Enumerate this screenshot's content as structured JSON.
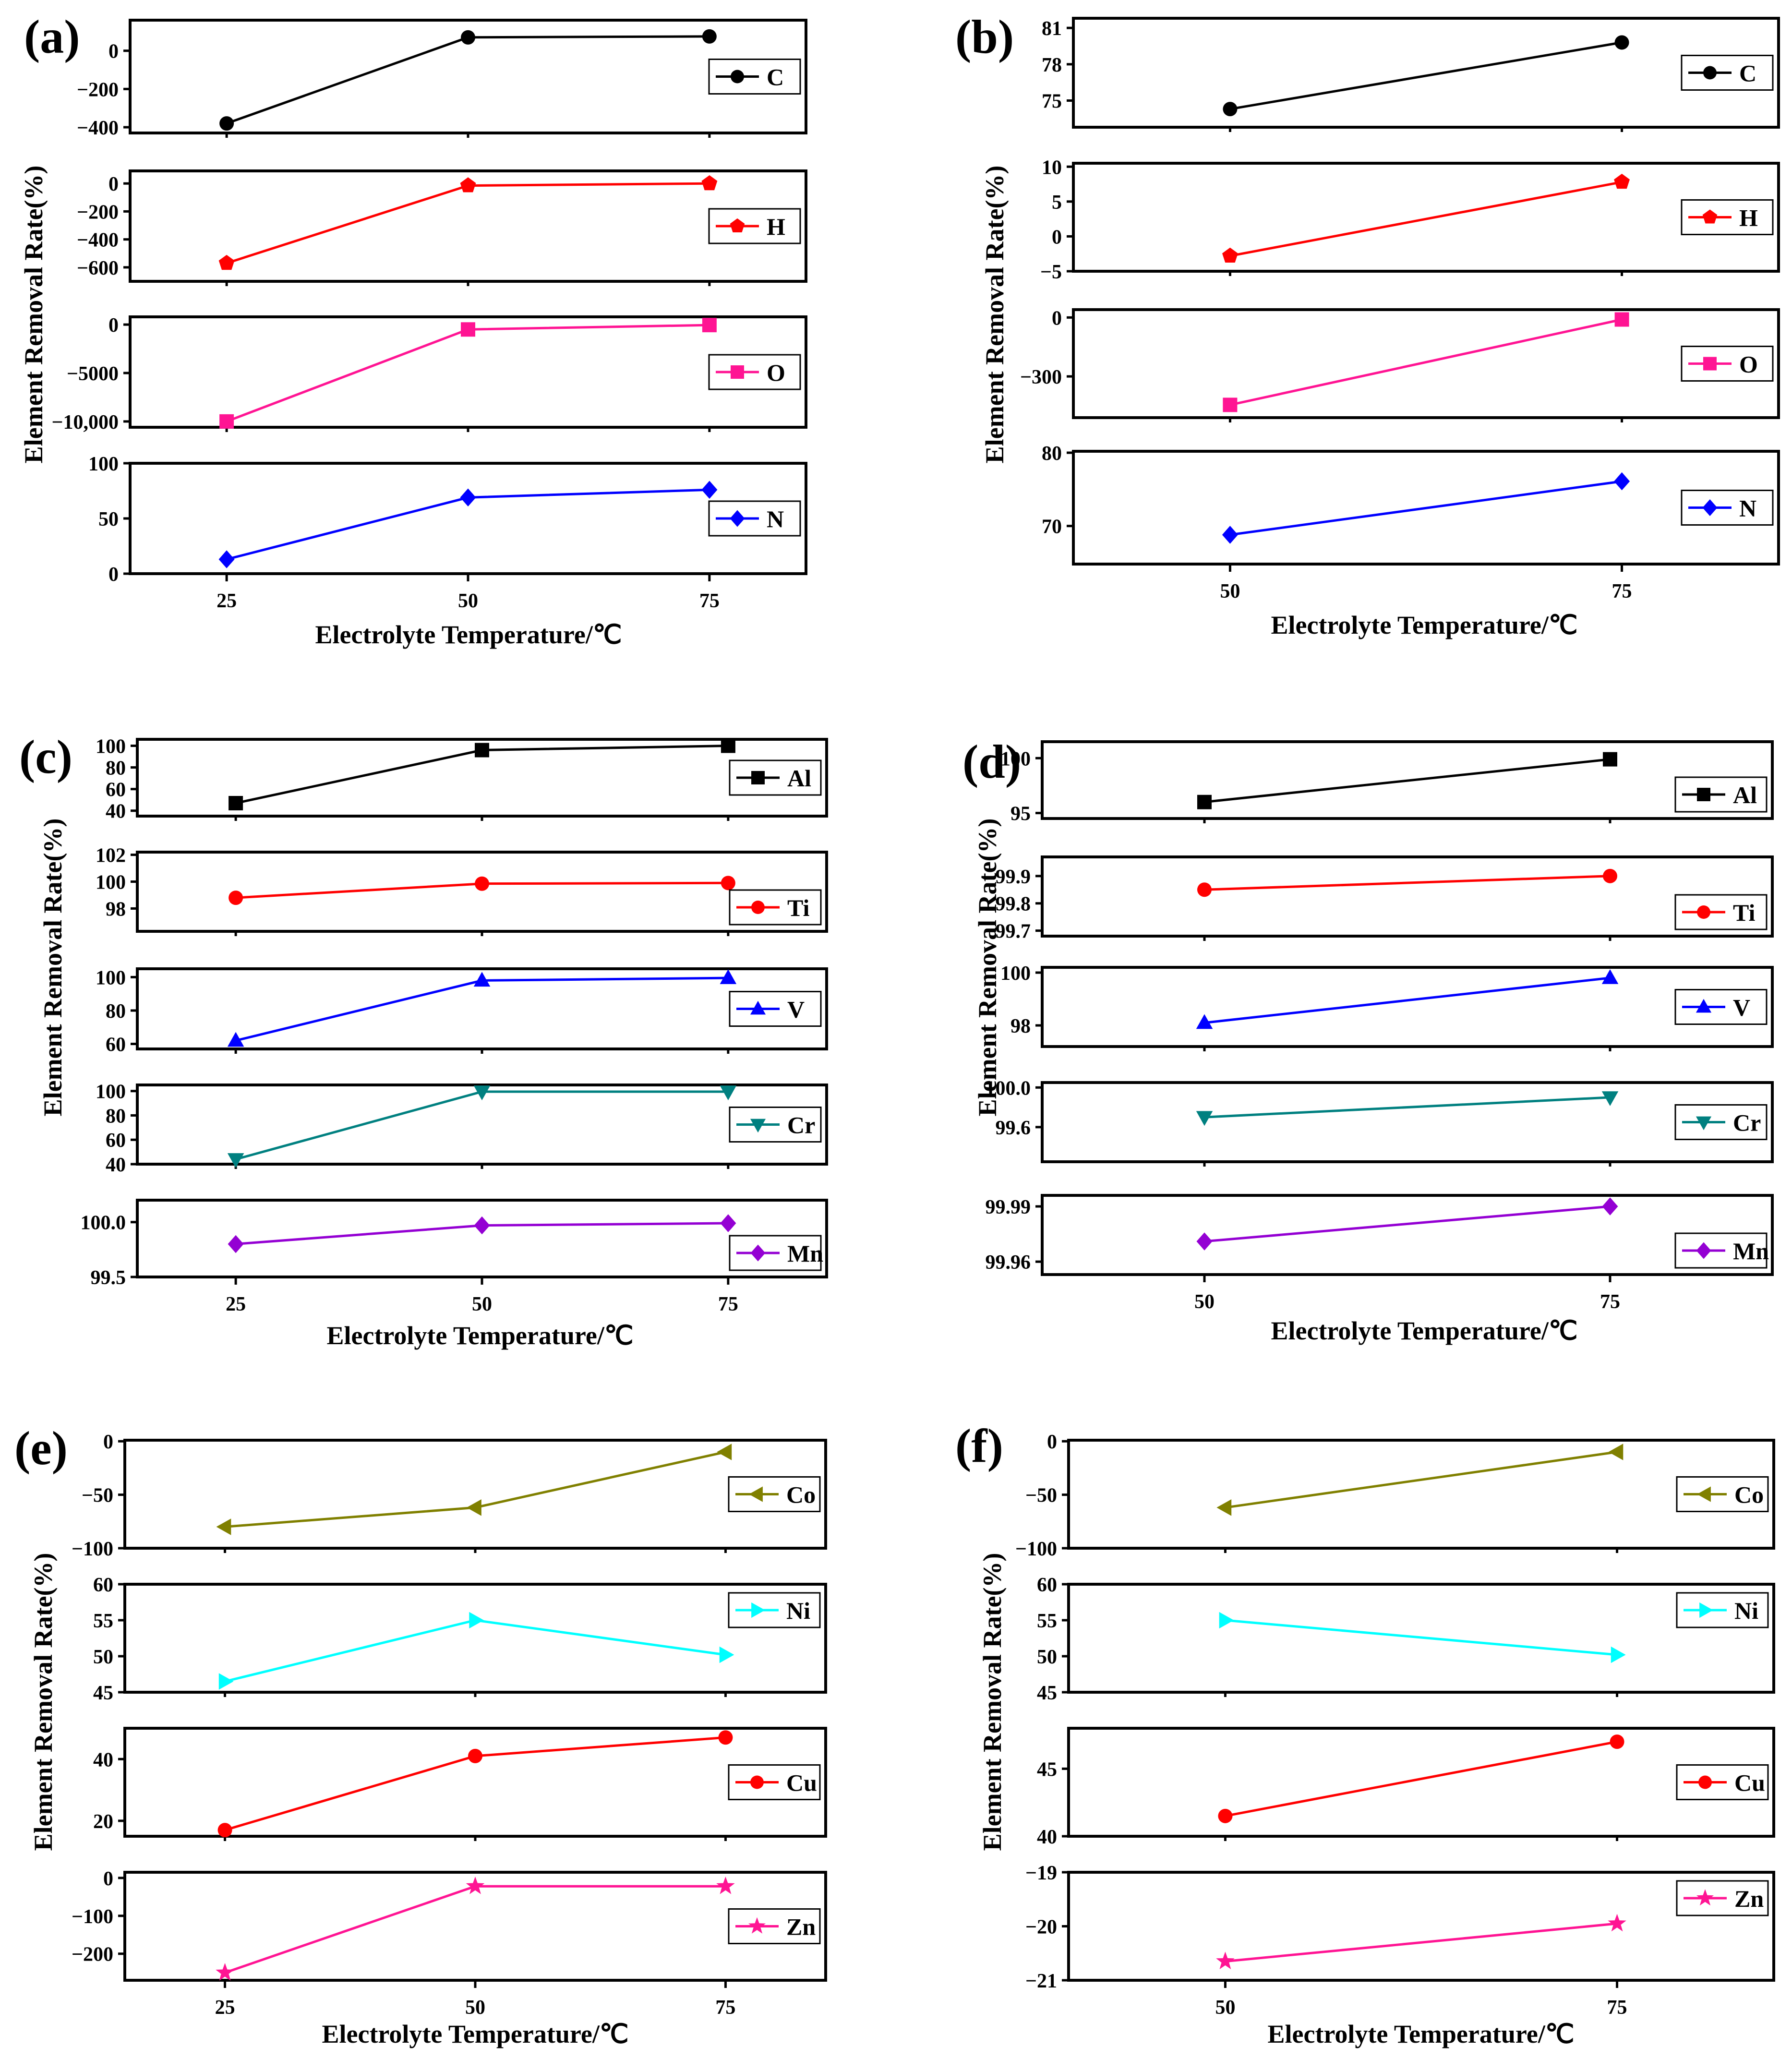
{
  "figure": {
    "x_label": "Electrolyte Temperature/℃",
    "y_label": "Element Removal Rate(%)"
  },
  "chart_data": [
    {
      "panel": "(a)",
      "type": "line",
      "x": [
        25,
        50,
        75
      ],
      "x_ticks": [
        "25",
        "50",
        "75"
      ],
      "xlabel": "Electrolyte Temperature/℃",
      "ylabel": "Element Removal Rate(%)",
      "subplots": [
        {
          "series": "C",
          "color": "#000000",
          "marker": "circle",
          "values": [
            -380,
            70,
            75
          ],
          "ylim": [
            -430,
            160
          ],
          "yticks": [
            {
              "v": 0,
              "t": "0"
            },
            {
              "v": -200,
              "t": "−200"
            },
            {
              "v": -400,
              "t": "−400"
            }
          ],
          "legend": "right-middle"
        },
        {
          "series": "H",
          "color": "#ff0000",
          "marker": "pentagon",
          "values": [
            -570,
            -15,
            0
          ],
          "ylim": [
            -700,
            90
          ],
          "yticks": [
            {
              "v": 0,
              "t": "0"
            },
            {
              "v": -200,
              "t": "−200"
            },
            {
              "v": -400,
              "t": "−400"
            },
            {
              "v": -600,
              "t": "−600"
            }
          ],
          "legend": "right-middle"
        },
        {
          "series": "O",
          "color": "#ff1493",
          "marker": "square",
          "values": [
            -10000,
            -500,
            -50
          ],
          "ylim": [
            -10600,
            800
          ],
          "yticks": [
            {
              "v": 0,
              "t": "0"
            },
            {
              "v": -5000,
              "t": "−5000"
            },
            {
              "v": -10000,
              "t": "−10,000"
            }
          ],
          "legend": "right-middle"
        },
        {
          "series": "N",
          "color": "#0000ff",
          "marker": "diamond",
          "values": [
            13,
            69,
            76
          ],
          "ylim": [
            0,
            100
          ],
          "yticks": [
            {
              "v": 0,
              "t": "0"
            },
            {
              "v": 50,
              "t": "50"
            },
            {
              "v": 100,
              "t": "100"
            }
          ],
          "legend": "right-middle"
        }
      ]
    },
    {
      "panel": "(b)",
      "type": "line",
      "x": [
        50,
        75
      ],
      "x_ticks": [
        "50",
        "75"
      ],
      "xlabel": "Electrolyte Temperature/℃",
      "ylabel": "Element Removal Rate(%)",
      "subplots": [
        {
          "series": "C",
          "color": "#000000",
          "marker": "circle",
          "values": [
            74.3,
            79.8
          ],
          "ylim": [
            72.8,
            81.8
          ],
          "yticks": [
            {
              "v": 81,
              "t": "81"
            },
            {
              "v": 78,
              "t": "78"
            },
            {
              "v": 75,
              "t": "75"
            }
          ],
          "legend": "right-middle"
        },
        {
          "series": "H",
          "color": "#ff0000",
          "marker": "pentagon",
          "values": [
            -2.8,
            7.8
          ],
          "ylim": [
            -5,
            10.5
          ],
          "yticks": [
            {
              "v": 10,
              "t": "10"
            },
            {
              "v": 5,
              "t": "5"
            },
            {
              "v": 0,
              "t": "0"
            },
            {
              "v": -5,
              "t": "−5"
            }
          ],
          "legend": "right-middle"
        },
        {
          "series": "O",
          "color": "#ff1493",
          "marker": "square",
          "values": [
            -445,
            -10
          ],
          "ylim": [
            -510,
            40
          ],
          "yticks": [
            {
              "v": 0,
              "t": "0"
            },
            {
              "v": -300,
              "t": "−300"
            }
          ],
          "legend": "right-middle"
        },
        {
          "series": "N",
          "color": "#0000ff",
          "marker": "diamond",
          "values": [
            68.8,
            76.1
          ],
          "ylim": [
            64.8,
            80.2
          ],
          "yticks": [
            {
              "v": 80,
              "t": "80"
            },
            {
              "v": 70,
              "t": "70"
            }
          ],
          "legend": "right-middle"
        }
      ]
    },
    {
      "panel": "(c)",
      "type": "line",
      "x": [
        25,
        50,
        75
      ],
      "x_ticks": [
        "25",
        "50",
        "75"
      ],
      "xlabel": "Electrolyte Temperature/℃",
      "ylabel": "Element Removal Rate(%)",
      "subplots": [
        {
          "series": "Al",
          "color": "#000000",
          "marker": "square",
          "values": [
            47,
            96,
            100
          ],
          "ylim": [
            35,
            106
          ],
          "yticks": [
            {
              "v": 100,
              "t": "100"
            },
            {
              "v": 80,
              "t": "80"
            },
            {
              "v": 60,
              "t": "60"
            },
            {
              "v": 40,
              "t": "40"
            }
          ],
          "legend": "right-middle"
        },
        {
          "series": "Ti",
          "color": "#ff0000",
          "marker": "circle",
          "values": [
            98.8,
            99.85,
            99.9
          ],
          "ylim": [
            96.3,
            102.2
          ],
          "yticks": [
            {
              "v": 102,
              "t": "102"
            },
            {
              "v": 100,
              "t": "100"
            },
            {
              "v": 98,
              "t": "98"
            }
          ],
          "legend": "right-lower"
        },
        {
          "series": "V",
          "color": "#0000ff",
          "marker": "triangle-up",
          "values": [
            62,
            98,
            99.5
          ],
          "ylim": [
            57,
            105
          ],
          "yticks": [
            {
              "v": 100,
              "t": "100"
            },
            {
              "v": 80,
              "t": "80"
            },
            {
              "v": 60,
              "t": "60"
            }
          ],
          "legend": "right-middle"
        },
        {
          "series": "Cr",
          "color": "#008080",
          "marker": "triangle-down",
          "values": [
            44,
            99.5,
            99.5
          ],
          "ylim": [
            40,
            105
          ],
          "yticks": [
            {
              "v": 100,
              "t": "100"
            },
            {
              "v": 80,
              "t": "80"
            },
            {
              "v": 60,
              "t": "60"
            },
            {
              "v": 40,
              "t": "40"
            }
          ],
          "legend": "right-middle"
        },
        {
          "series": "Mn",
          "color": "#9400d3",
          "marker": "diamond",
          "values": [
            99.8,
            99.97,
            99.99
          ],
          "ylim": [
            99.5,
            100.2
          ],
          "yticks": [
            {
              "v": 100.0,
              "t": "100.0"
            },
            {
              "v": 99.5,
              "t": "99.5"
            }
          ],
          "legend": "right-lower"
        }
      ]
    },
    {
      "panel": "(d)",
      "type": "line",
      "x": [
        50,
        75
      ],
      "x_ticks": [
        "50",
        "75"
      ],
      "xlabel": "Electrolyte Temperature/℃",
      "ylabel": "Element Removal Rate(%)",
      "subplots": [
        {
          "series": "Al",
          "color": "#000000",
          "marker": "square",
          "values": [
            96,
            99.9
          ],
          "ylim": [
            94.5,
            101.5
          ],
          "yticks": [
            {
              "v": 100,
              "t": "100"
            },
            {
              "v": 95,
              "t": "95"
            }
          ],
          "legend": "right-lower"
        },
        {
          "series": "Ti",
          "color": "#ff0000",
          "marker": "circle",
          "values": [
            99.85,
            99.9
          ],
          "ylim": [
            99.68,
            99.97
          ],
          "yticks": [
            {
              "v": 99.9,
              "t": "99.9"
            },
            {
              "v": 99.8,
              "t": "99.8"
            },
            {
              "v": 99.7,
              "t": "99.7"
            }
          ],
          "legend": "right-lower"
        },
        {
          "series": "V",
          "color": "#0000ff",
          "marker": "triangle-up",
          "values": [
            98.1,
            99.8
          ],
          "ylim": [
            97.2,
            100.2
          ],
          "yticks": [
            {
              "v": 100,
              "t": "100"
            },
            {
              "v": 98,
              "t": "98"
            }
          ],
          "legend": "right-middle"
        },
        {
          "series": "Cr",
          "color": "#008080",
          "marker": "triangle-down",
          "values": [
            99.7,
            99.9
          ],
          "ylim": [
            99.25,
            100.05
          ],
          "yticks": [
            {
              "v": 100.0,
              "t": "100.0"
            },
            {
              "v": 99.6,
              "t": "99.6"
            }
          ],
          "legend": "right-middle"
        },
        {
          "series": "Mn",
          "color": "#9400d3",
          "marker": "diamond",
          "values": [
            99.971,
            99.99
          ],
          "ylim": [
            99.953,
            99.996
          ],
          "yticks": [
            {
              "v": 99.99,
              "t": "99.99"
            },
            {
              "v": 99.96,
              "t": "99.96"
            }
          ],
          "legend": "right-lower"
        }
      ]
    },
    {
      "panel": "(e)",
      "type": "line",
      "x": [
        25,
        50,
        75
      ],
      "x_ticks": [
        "25",
        "50",
        "75"
      ],
      "xlabel": "Electrolyte Temperature/℃",
      "ylabel": "Element Removal Rate(%)",
      "subplots": [
        {
          "series": "Co",
          "color": "#808000",
          "marker": "triangle-left",
          "values": [
            -80,
            -62,
            -10
          ],
          "ylim": [
            -100,
            1
          ],
          "yticks": [
            {
              "v": 0,
              "t": "0"
            },
            {
              "v": -50,
              "t": "−50"
            },
            {
              "v": -100,
              "t": "−100"
            }
          ],
          "legend": "right-middle"
        },
        {
          "series": "Ni",
          "color": "#00ffff",
          "marker": "triangle-right",
          "values": [
            46.5,
            55,
            50.2
          ],
          "ylim": [
            45,
            60
          ],
          "yticks": [
            {
              "v": 60,
              "t": "60"
            },
            {
              "v": 55,
              "t": "55"
            },
            {
              "v": 50,
              "t": "50"
            },
            {
              "v": 45,
              "t": "45"
            }
          ],
          "legend": "right-upper"
        },
        {
          "series": "Cu",
          "color": "#ff0000",
          "marker": "circle",
          "values": [
            17,
            41,
            47
          ],
          "ylim": [
            15,
            50
          ],
          "yticks": [
            {
              "v": 40,
              "t": "40"
            },
            {
              "v": 20,
              "t": "20"
            }
          ],
          "legend": "right-middle"
        },
        {
          "series": "Zn",
          "color": "#ff1493",
          "marker": "star",
          "values": [
            -250,
            -22,
            -22
          ],
          "ylim": [
            -270,
            15
          ],
          "yticks": [
            {
              "v": 0,
              "t": "0"
            },
            {
              "v": -100,
              "t": "−100"
            },
            {
              "v": -200,
              "t": "−200"
            }
          ],
          "legend": "right-middle"
        }
      ]
    },
    {
      "panel": "(f)",
      "type": "line",
      "x": [
        50,
        75
      ],
      "x_ticks": [
        "50",
        "75"
      ],
      "xlabel": "Electrolyte Temperature/℃",
      "ylabel": "Element Removal Rate(%)",
      "subplots": [
        {
          "series": "Co",
          "color": "#808000",
          "marker": "triangle-left",
          "values": [
            -62,
            -10
          ],
          "ylim": [
            -100,
            1
          ],
          "yticks": [
            {
              "v": 0,
              "t": "0"
            },
            {
              "v": -50,
              "t": "−50"
            },
            {
              "v": -100,
              "t": "−100"
            }
          ],
          "legend": "right-middle"
        },
        {
          "series": "Ni",
          "color": "#00ffff",
          "marker": "triangle-right",
          "values": [
            55,
            50.2
          ],
          "ylim": [
            45,
            60
          ],
          "yticks": [
            {
              "v": 60,
              "t": "60"
            },
            {
              "v": 55,
              "t": "55"
            },
            {
              "v": 50,
              "t": "50"
            },
            {
              "v": 45,
              "t": "45"
            }
          ],
          "legend": "right-upper"
        },
        {
          "series": "Cu",
          "color": "#ff0000",
          "marker": "circle",
          "values": [
            41.5,
            47
          ],
          "ylim": [
            40,
            48
          ],
          "yticks": [
            {
              "v": 45,
              "t": "45"
            },
            {
              "v": 40,
              "t": "40"
            }
          ],
          "legend": "right-middle"
        },
        {
          "series": "Zn",
          "color": "#ff1493",
          "marker": "star",
          "values": [
            -20.65,
            -19.95
          ],
          "ylim": [
            -21,
            -19
          ],
          "yticks": [
            {
              "v": -19,
              "t": "−19"
            },
            {
              "v": -20,
              "t": "−20"
            },
            {
              "v": -21,
              "t": "−21"
            }
          ],
          "legend": "right-upper"
        }
      ]
    }
  ]
}
